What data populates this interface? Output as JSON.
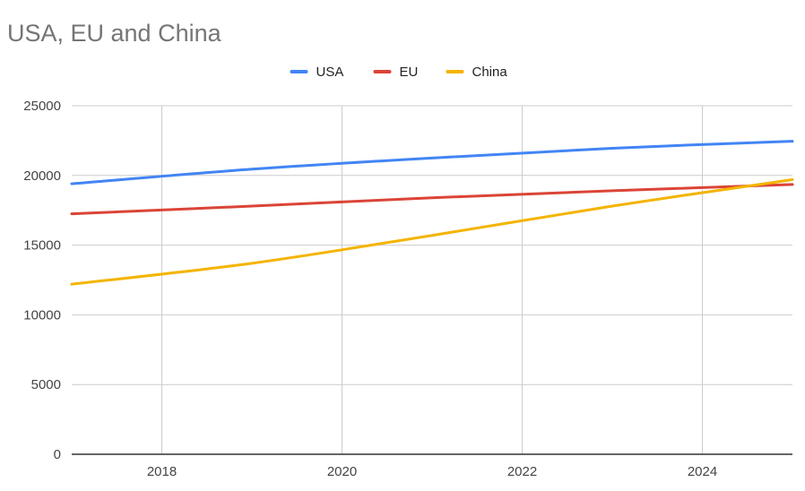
{
  "chart_data": {
    "type": "line",
    "title": "USA, EU and China",
    "x": [
      2017,
      2019,
      2021,
      2023,
      2025
    ],
    "xlim": [
      2017,
      2025
    ],
    "ylim": [
      0,
      25000
    ],
    "xticks": [
      "2018",
      "2020",
      "2022",
      "2024"
    ],
    "yticks": [
      "0",
      "5000",
      "10000",
      "15000",
      "20000",
      "25000"
    ],
    "grid": true,
    "legend_position": "top",
    "series": [
      {
        "name": "USA",
        "color": "#4285F4",
        "values": [
          19400,
          20450,
          21250,
          21950,
          22450
        ]
      },
      {
        "name": "EU",
        "color": "#DB4437",
        "values": [
          17250,
          17800,
          18400,
          18900,
          19350
        ]
      },
      {
        "name": "China",
        "color": "#F4B400",
        "values": [
          12200,
          13700,
          15700,
          17800,
          19700
        ]
      }
    ]
  }
}
